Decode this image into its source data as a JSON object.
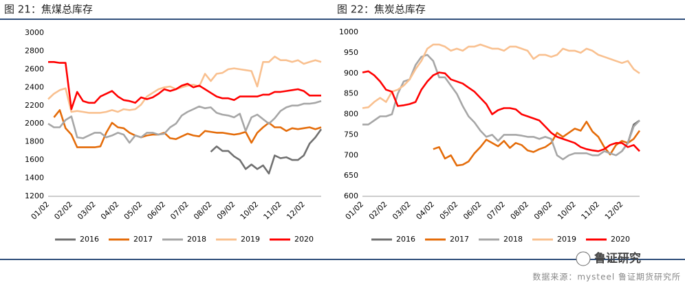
{
  "chart_data": [
    {
      "type": "line",
      "title": "图 21：焦煤总库存",
      "categories": [
        "01/02",
        null,
        null,
        null,
        "02/02",
        null,
        null,
        null,
        "03/02",
        null,
        null,
        null,
        "04/02",
        null,
        null,
        null,
        "05/02",
        null,
        null,
        null,
        "06/02",
        null,
        null,
        null,
        "07/02",
        null,
        null,
        null,
        "08/02",
        null,
        null,
        null,
        "09/02",
        null,
        null,
        null,
        "10/02",
        null,
        null,
        null,
        "11/02",
        null,
        null,
        null,
        "12/02",
        null,
        null,
        null
      ],
      "ylim": [
        1200,
        3000
      ],
      "yticks": [
        1200,
        1400,
        1600,
        1800,
        2000,
        2200,
        2400,
        2600,
        2800,
        3000
      ],
      "series": [
        {
          "name": "2016",
          "color": "#707070",
          "values": [
            null,
            null,
            null,
            null,
            null,
            null,
            null,
            null,
            null,
            null,
            null,
            null,
            null,
            null,
            null,
            null,
            null,
            null,
            null,
            null,
            null,
            null,
            null,
            null,
            null,
            null,
            null,
            null,
            1690,
            1750,
            1700,
            1700,
            1640,
            1600,
            1500,
            1550,
            1500,
            1540,
            1450,
            1650,
            1620,
            1630,
            1600,
            1600,
            1650,
            1780,
            1850,
            1940
          ]
        },
        {
          "name": "2017",
          "color": "#e46c0a",
          "values": [
            null,
            2070,
            2150,
            1950,
            1880,
            1740,
            1740,
            1740,
            1740,
            1750,
            1900,
            2010,
            1960,
            1950,
            1900,
            1870,
            1850,
            1870,
            1880,
            1880,
            1900,
            1840,
            1830,
            1860,
            1890,
            1870,
            1860,
            1920,
            1910,
            1900,
            1900,
            1890,
            1880,
            1890,
            1910,
            1790,
            1900,
            1960,
            2010,
            1960,
            1960,
            1920,
            1950,
            1940,
            1950,
            1960,
            1940,
            1960
          ]
        },
        {
          "name": "2018",
          "color": "#a6a6a6",
          "values": [
            2000,
            1960,
            1960,
            2040,
            2080,
            1850,
            1840,
            1870,
            1900,
            1900,
            1850,
            1870,
            1900,
            1880,
            1790,
            1870,
            1850,
            1900,
            1900,
            1880,
            1890,
            1960,
            2000,
            2090,
            2130,
            2160,
            2190,
            2170,
            2180,
            2120,
            2100,
            2090,
            2070,
            2110,
            1920,
            2070,
            2100,
            2050,
            2000,
            2060,
            2140,
            2180,
            2200,
            2200,
            2220,
            2220,
            2230,
            2250
          ]
        },
        {
          "name": "2019",
          "color": "#f9c08f",
          "values": [
            2270,
            2330,
            2370,
            2390,
            2130,
            2140,
            2130,
            2120,
            2120,
            2120,
            2130,
            2150,
            2130,
            2160,
            2150,
            2160,
            2210,
            2300,
            2340,
            2380,
            2400,
            2410,
            2380,
            2400,
            2420,
            2430,
            2410,
            2550,
            2470,
            2550,
            2560,
            2600,
            2610,
            2600,
            2590,
            2580,
            2410,
            2680,
            2680,
            2740,
            2700,
            2700,
            2680,
            2700,
            2660,
            2680,
            2700,
            2680
          ]
        },
        {
          "name": "2020",
          "color": "#ff0000",
          "values": [
            2680,
            2680,
            2670,
            2670,
            2160,
            2350,
            2250,
            2230,
            2230,
            2300,
            2330,
            2360,
            2300,
            2260,
            2250,
            2230,
            2290,
            2270,
            2290,
            2330,
            2380,
            2360,
            2380,
            2420,
            2440,
            2400,
            2420,
            2380,
            2340,
            2300,
            2280,
            2280,
            2260,
            2300,
            2300,
            2300,
            2300,
            2320,
            2320,
            2350,
            2350,
            2360,
            2370,
            2380,
            2360,
            2310,
            2310,
            2310
          ]
        }
      ]
    },
    {
      "type": "line",
      "title": "图 22：焦炭总库存",
      "categories": [
        "01/02",
        null,
        null,
        null,
        "02/02",
        null,
        null,
        null,
        "03/02",
        null,
        null,
        null,
        "04/02",
        null,
        null,
        null,
        "05/02",
        null,
        null,
        null,
        "06/02",
        null,
        null,
        null,
        "07/02",
        null,
        null,
        null,
        "08/02",
        null,
        null,
        null,
        "09/02",
        null,
        null,
        null,
        "10/02",
        null,
        null,
        null,
        "11/02",
        null,
        null,
        null,
        "12/02",
        null,
        null,
        null
      ],
      "ylim": [
        600,
        1000
      ],
      "yticks": [
        600,
        650,
        700,
        750,
        800,
        850,
        900,
        950,
        1000
      ],
      "series": [
        {
          "name": "2016",
          "color": "#707070",
          "values": [
            null,
            null,
            null,
            null,
            null,
            null,
            null,
            null,
            null,
            null,
            null,
            null,
            null,
            null,
            null,
            null,
            null,
            null,
            null,
            null,
            null,
            null,
            null,
            null,
            null,
            null,
            null,
            null,
            null,
            null,
            null,
            null,
            null,
            null,
            null,
            null,
            null,
            null,
            null,
            null,
            null,
            null,
            null,
            null,
            710,
            730,
            775,
            785
          ]
        },
        {
          "name": "2017",
          "color": "#e46c0a",
          "values": [
            null,
            null,
            null,
            null,
            null,
            null,
            null,
            null,
            null,
            null,
            null,
            null,
            715,
            720,
            692,
            700,
            675,
            677,
            685,
            705,
            720,
            738,
            730,
            722,
            735,
            718,
            730,
            725,
            712,
            708,
            715,
            720,
            730,
            755,
            745,
            755,
            765,
            760,
            782,
            758,
            745,
            720,
            702,
            725,
            735,
            730,
            740,
            760
          ]
        },
        {
          "name": "2018",
          "color": "#a6a6a6",
          "values": [
            775,
            775,
            785,
            795,
            795,
            800,
            850,
            880,
            885,
            920,
            940,
            945,
            930,
            890,
            890,
            870,
            850,
            820,
            795,
            780,
            760,
            745,
            750,
            735,
            750,
            750,
            750,
            748,
            745,
            745,
            740,
            745,
            740,
            700,
            690,
            700,
            705,
            705,
            705,
            700,
            700,
            710,
            705,
            700,
            710,
            730,
            770,
            785
          ]
        },
        {
          "name": "2019",
          "color": "#f9c08f",
          "values": [
            815,
            817,
            830,
            840,
            830,
            855,
            860,
            870,
            885,
            910,
            930,
            960,
            970,
            970,
            965,
            955,
            960,
            955,
            965,
            965,
            970,
            965,
            960,
            960,
            955,
            965,
            965,
            960,
            955,
            935,
            945,
            945,
            940,
            945,
            960,
            955,
            955,
            950,
            960,
            955,
            945,
            940,
            935,
            930,
            925,
            930,
            910,
            900
          ]
        },
        {
          "name": "2020",
          "color": "#ff0000",
          "values": [
            902,
            905,
            895,
            880,
            860,
            855,
            820,
            822,
            825,
            830,
            860,
            880,
            895,
            902,
            900,
            885,
            880,
            875,
            865,
            855,
            840,
            825,
            800,
            810,
            815,
            815,
            812,
            800,
            795,
            790,
            785,
            770,
            755,
            745,
            740,
            735,
            730,
            720,
            715,
            712,
            710,
            715,
            725,
            730,
            730,
            720,
            725,
            710
          ]
        }
      ]
    }
  ],
  "source": "数据来源：mysteel 鲁证期货研究所",
  "logo": "鲁证研究"
}
